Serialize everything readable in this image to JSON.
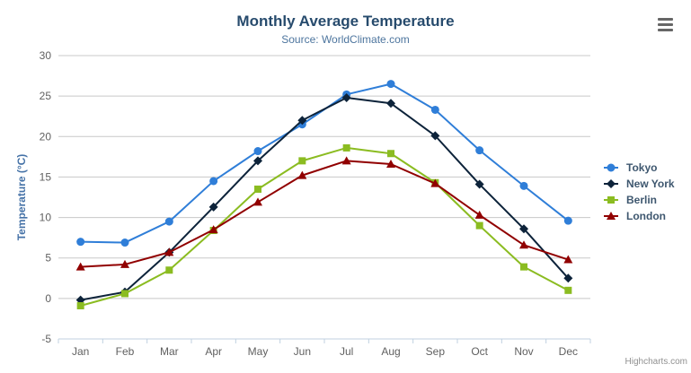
{
  "chart": {
    "title": "Monthly Average Temperature",
    "subtitle": "Source: WorldClimate.com",
    "y_axis_title": "Temperature (°C)",
    "credit": "Highcharts.com",
    "context_menu_icon": "hamburger-icon"
  },
  "colors": {
    "title": "#274b6d",
    "subtitle": "#4d759e",
    "axis_title": "#4572a7",
    "axis_labels": "#606060",
    "legend_text": "#3e576f",
    "gridline": "#c8c8c8",
    "axis_line": "#c0d0e0",
    "credit": "#909090",
    "background": "#ffffff"
  },
  "chart_data": {
    "type": "line",
    "title": "Monthly Average Temperature",
    "subtitle": "Source: WorldClimate.com",
    "xlabel": "",
    "ylabel": "Temperature (°C)",
    "ylim": [
      -5,
      30
    ],
    "y_ticks": [
      -5,
      0,
      5,
      10,
      15,
      20,
      25,
      30
    ],
    "grid": "horizontal",
    "legend_position": "right",
    "categories": [
      "Jan",
      "Feb",
      "Mar",
      "Apr",
      "May",
      "Jun",
      "Jul",
      "Aug",
      "Sep",
      "Oct",
      "Nov",
      "Dec"
    ],
    "series": [
      {
        "name": "Tokyo",
        "color": "#2f7ed8",
        "marker": "circle",
        "values": [
          7.0,
          6.9,
          9.5,
          14.5,
          18.2,
          21.5,
          25.2,
          26.5,
          23.3,
          18.3,
          13.9,
          9.6
        ]
      },
      {
        "name": "New York",
        "color": "#0d233a",
        "marker": "diamond",
        "values": [
          -0.2,
          0.8,
          5.7,
          11.3,
          17.0,
          22.0,
          24.8,
          24.1,
          20.1,
          14.1,
          8.6,
          2.5
        ]
      },
      {
        "name": "Berlin",
        "color": "#8bbc21",
        "marker": "square",
        "values": [
          -0.9,
          0.6,
          3.5,
          8.4,
          13.5,
          17.0,
          18.6,
          17.9,
          14.3,
          9.0,
          3.9,
          1.0
        ]
      },
      {
        "name": "London",
        "color": "#910000",
        "marker": "triangle",
        "values": [
          3.9,
          4.2,
          5.7,
          8.5,
          11.9,
          15.2,
          17.0,
          16.6,
          14.2,
          10.3,
          6.6,
          4.8
        ]
      }
    ]
  }
}
